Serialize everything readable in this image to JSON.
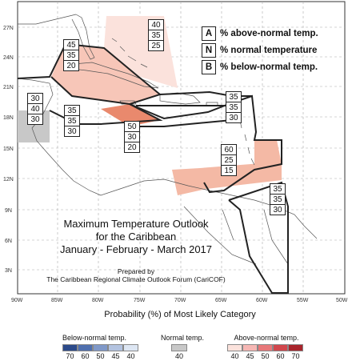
{
  "map": {
    "title_line1": "Maximum Temperature Outlook",
    "title_line2": "for the Caribbean",
    "title_line3": "January - February - March 2017",
    "prepared_line1": "Prepared by",
    "prepared_line2": "The Caribbean Regional Climate Outlook Forum (CariCOF)",
    "lat_labels": [
      "27N",
      "24N",
      "21N",
      "18N",
      "15N",
      "12N",
      "9N",
      "6N",
      "3N"
    ],
    "lon_labels": [
      "90W",
      "85W",
      "80W",
      "75W",
      "70W",
      "65W",
      "60W",
      "55W",
      "50W"
    ]
  },
  "key": {
    "A_letter": "A",
    "A_text": "% above-normal temp.",
    "N_letter": "N",
    "N_text": "% normal temperature",
    "B_letter": "B",
    "B_text": "% below-normal temp."
  },
  "regions": [
    {
      "id": "bahamas",
      "values": [
        "40",
        "35",
        "25"
      ],
      "color": "#fbe2dc"
    },
    {
      "id": "cuba-west",
      "values": [
        "45",
        "35",
        "20"
      ],
      "color": "#f7c6b8"
    },
    {
      "id": "central-america-west",
      "values": [
        "30",
        "40",
        "30"
      ],
      "color": "#c8c8c8"
    },
    {
      "id": "jamaica-west",
      "values": [
        "35",
        "35",
        "30"
      ],
      "color": "#ffffff"
    },
    {
      "id": "jamaica-south",
      "values": [
        "50",
        "30",
        "20"
      ],
      "color": "#e9896d"
    },
    {
      "id": "hispaniola-pr",
      "values": [
        "35",
        "35",
        "30"
      ],
      "color": "#ffffff"
    },
    {
      "id": "lesser-antilles",
      "values": [
        "60",
        "25",
        "15"
      ],
      "color": "#f4b9a5"
    },
    {
      "id": "guianas",
      "values": [
        "35",
        "35",
        "30"
      ],
      "color": "#ffffff"
    }
  ],
  "legend": {
    "title": "Probability (%) of Most Likely Category",
    "below_label": "Below-normal temp.",
    "normal_label": "Normal temp.",
    "above_label": "Above-normal temp.",
    "below_ticks": [
      "70",
      "60",
      "50",
      "45",
      "40"
    ],
    "normal_ticks": [
      "40"
    ],
    "above_ticks": [
      "40",
      "45",
      "50",
      "60",
      "70"
    ],
    "below_colors": [
      "#2c4a8a",
      "#4f6fae",
      "#7f98c8",
      "#b3c3e0",
      "#dde6f3"
    ],
    "normal_color": "#c8c8c8",
    "above_colors": [
      "#fbe2dc",
      "#f6b7b4",
      "#e8787a",
      "#d1464c",
      "#a8242b"
    ]
  }
}
